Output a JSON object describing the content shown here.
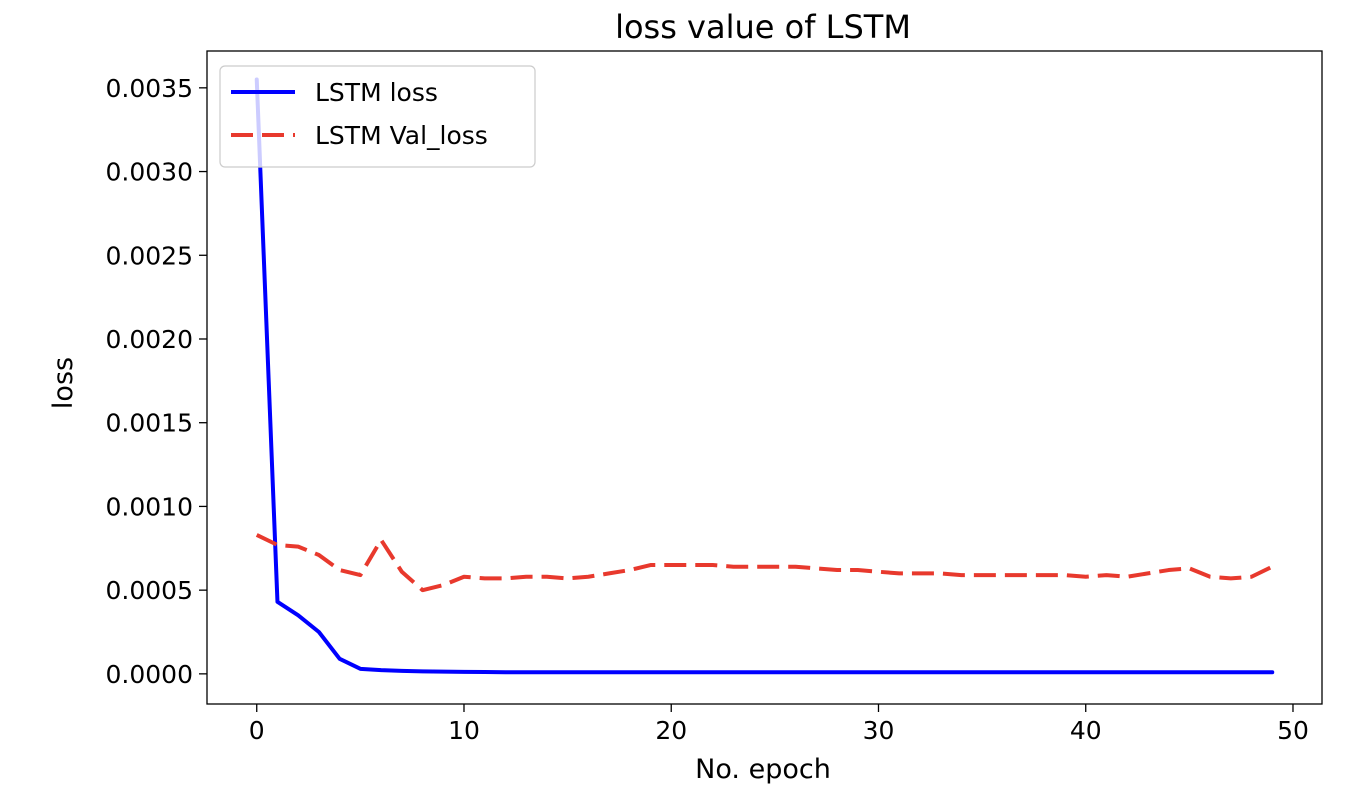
{
  "chart_data": {
    "type": "line",
    "title": "loss value of LSTM",
    "xlabel": "No. epoch",
    "ylabel": "loss",
    "xlim": [
      -2.4,
      51.4
    ],
    "ylim": [
      -0.00018,
      0.00372
    ],
    "x_ticks": [
      0,
      10,
      20,
      30,
      40,
      50
    ],
    "y_ticks": [
      0.0,
      0.0005,
      0.001,
      0.0015,
      0.002,
      0.0025,
      0.003,
      0.0035
    ],
    "x_tick_labels": [
      "0",
      "10",
      "20",
      "30",
      "40",
      "50"
    ],
    "y_tick_labels": [
      "0.0000",
      "0.0005",
      "0.0010",
      "0.0015",
      "0.0020",
      "0.0025",
      "0.0030",
      "0.0035"
    ],
    "grid": false,
    "legend_position": "upper-left",
    "x": [
      0,
      1,
      2,
      3,
      4,
      5,
      6,
      7,
      8,
      9,
      10,
      11,
      12,
      13,
      14,
      15,
      16,
      17,
      18,
      19,
      20,
      21,
      22,
      23,
      24,
      25,
      26,
      27,
      28,
      29,
      30,
      31,
      32,
      33,
      34,
      35,
      36,
      37,
      38,
      39,
      40,
      41,
      42,
      43,
      44,
      45,
      46,
      47,
      48,
      49
    ],
    "series": [
      {
        "name": "LSTM loss",
        "color": "#0000ff",
        "style": "solid",
        "values": [
          0.00355,
          0.00043,
          0.00035,
          0.00025,
          9e-05,
          3e-05,
          2.2e-05,
          1.8e-05,
          1.5e-05,
          1.3e-05,
          1.2e-05,
          1.1e-05,
          1e-05,
          1e-05,
          1e-05,
          1e-05,
          1e-05,
          1e-05,
          1e-05,
          1e-05,
          1e-05,
          1e-05,
          1e-05,
          1e-05,
          1e-05,
          1e-05,
          1e-05,
          1e-05,
          1e-05,
          1e-05,
          1e-05,
          1e-05,
          1e-05,
          1e-05,
          1e-05,
          1e-05,
          1e-05,
          1e-05,
          1e-05,
          1e-05,
          1e-05,
          1e-05,
          1e-05,
          1e-05,
          1e-05,
          1e-05,
          1e-05,
          1e-05,
          1e-05,
          1e-05
        ]
      },
      {
        "name": "LSTM Val_loss",
        "color": "#e8392d",
        "style": "dashed",
        "values": [
          0.00083,
          0.00077,
          0.00076,
          0.00071,
          0.00062,
          0.00059,
          0.0008,
          0.00061,
          0.0005,
          0.00053,
          0.00058,
          0.00057,
          0.00057,
          0.00058,
          0.00058,
          0.00057,
          0.00058,
          0.0006,
          0.00062,
          0.00065,
          0.00065,
          0.00065,
          0.00065,
          0.00064,
          0.00064,
          0.00064,
          0.00064,
          0.00063,
          0.00062,
          0.00062,
          0.00061,
          0.0006,
          0.0006,
          0.0006,
          0.00059,
          0.00059,
          0.00059,
          0.00059,
          0.00059,
          0.00059,
          0.00058,
          0.00059,
          0.00058,
          0.0006,
          0.00062,
          0.00063,
          0.00058,
          0.00057,
          0.00058,
          0.00064
        ]
      }
    ]
  }
}
